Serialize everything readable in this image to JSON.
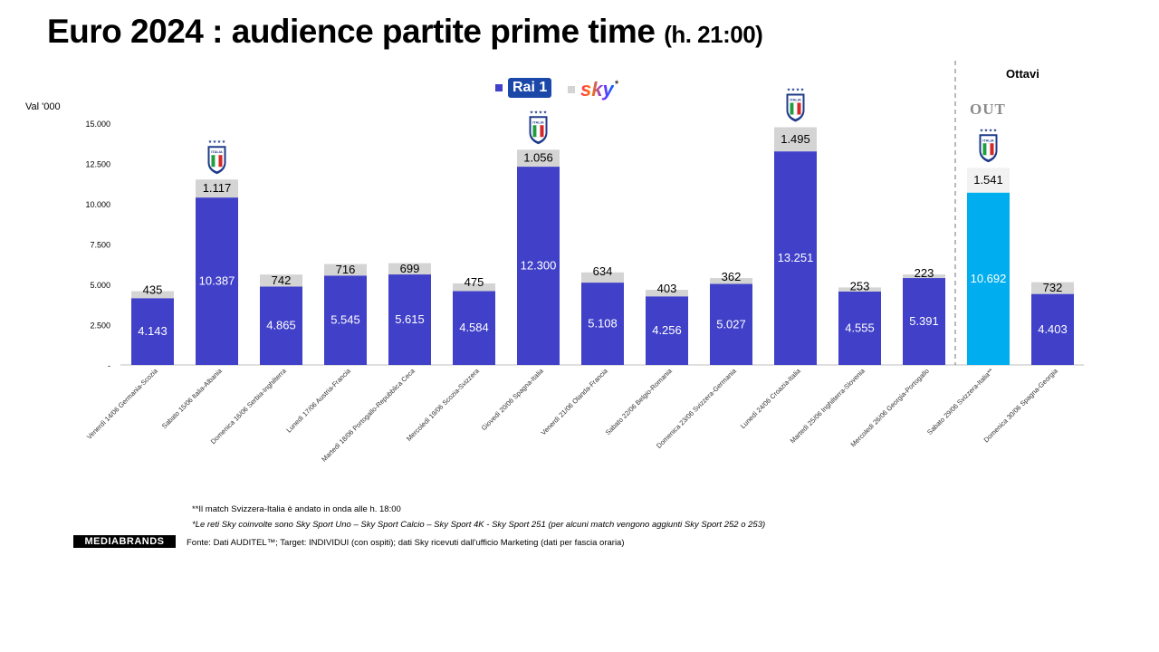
{
  "title": "Euro 2024 : audience partite prime time",
  "title_suffix": "(h. 21:00)",
  "ylabel": "Val '000",
  "legend": [
    {
      "name": "Rai 1",
      "logo_text": "Rai 1",
      "color": "#4040c8"
    },
    {
      "name": "Sky",
      "logo_text": "sky",
      "suffix": "*",
      "color": "#d4d4d4"
    }
  ],
  "round_label": "Ottavi",
  "out_label": "OUT",
  "badge_text": "ITALIA",
  "notes": {
    "note1": "**Il match Svizzera-Italia è andato in onda alle h. 18:00",
    "note2": "*Le reti Sky coinvolte sono Sky Sport Uno – Sky Sport Calcio – Sky Sport 4K - Sky Sport 251  (per alcuni match vengono aggiunti Sky Sport 252 o 253)",
    "source": "Fonte: Dati AUDITEL™; Target: INDIVIDUI (con ospiti); dati Sky ricevuti dall'ufficio Marketing (dati per fascia oraria)",
    "logo": "MEDIABRANDS"
  },
  "colors": {
    "rai": "#4040c8",
    "sky": "#d4d4d4",
    "highlight": "#00aeef"
  },
  "chart_data": {
    "type": "bar",
    "stacked": true,
    "ylim": [
      0,
      15000
    ],
    "yticks": [
      "-",
      "2.500",
      "5.000",
      "7.500",
      "10.000",
      "12.500",
      "15.000"
    ],
    "categories": [
      "Venerdì 14/06 Germania-Scozia",
      "Sabato 15/06 Italia-Albania",
      "Domenica 16/06 Serbia-Inghilterra",
      "Lunedì 17/06 Austria-Francia",
      "Martedì 18/06 Portogallo-Repubblica Ceca",
      "Mercoledì 19/06 Scozia-Svizzera",
      "Giovedì 20/06 Spagna-Italia",
      "Venerdì 21/06 Olanda-Francia",
      "Sabato 22/06 Belgio-Romania",
      "Domenica 23/06 Svizzera-Germania",
      "Lunedì 24/06 Croazia-Italia",
      "Martedì 25/06 Inghilterra-Slovenia",
      "Mercoledì 26/06 Georgia-Portogallo",
      "Sabato 29/06 Svizzera-Italia**",
      "Domenica 30/06 Spagna-Georgia"
    ],
    "series": [
      {
        "name": "Rai 1",
        "values": [
          4143,
          10387,
          4865,
          5545,
          5615,
          4584,
          12300,
          5108,
          4256,
          5027,
          13251,
          4555,
          5391,
          10692,
          4403
        ],
        "labels": [
          "4.143",
          "10.387",
          "4.865",
          "5.545",
          "5.615",
          "4.584",
          "12.300",
          "5.108",
          "4.256",
          "5.027",
          "13.251",
          "4.555",
          "5.391",
          "10.692",
          "4.403"
        ]
      },
      {
        "name": "Sky",
        "values": [
          435,
          1117,
          742,
          716,
          699,
          475,
          1056,
          634,
          403,
          362,
          1495,
          253,
          223,
          1541,
          732
        ],
        "labels": [
          "435",
          "1.117",
          "742",
          "716",
          "699",
          "475",
          "1.056",
          "634",
          "403",
          "362",
          "1.495",
          "253",
          "223",
          "1.541",
          "732"
        ]
      }
    ],
    "italy_matches": [
      1,
      6,
      10,
      13
    ],
    "highlight_index": 13
  }
}
